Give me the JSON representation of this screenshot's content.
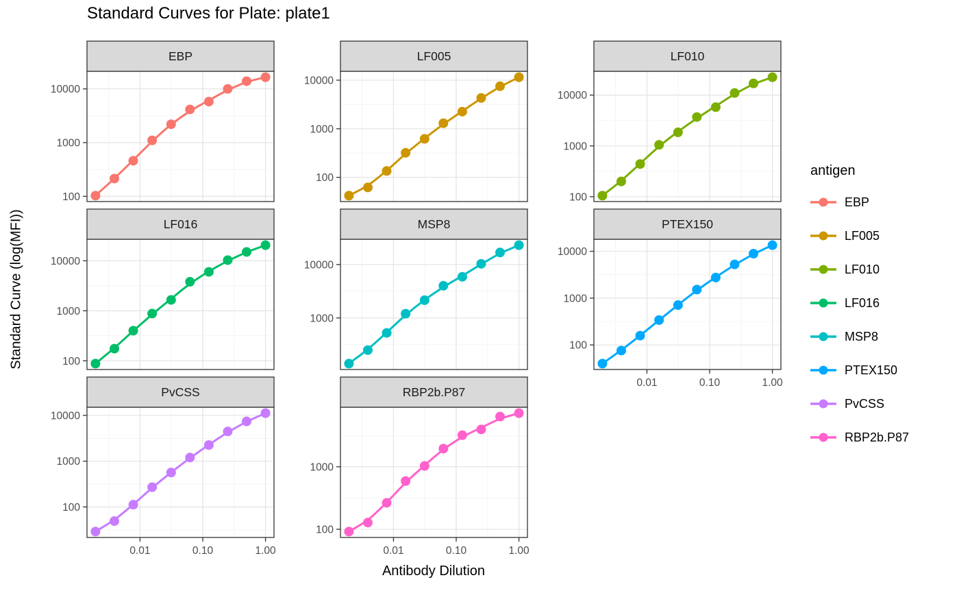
{
  "title": "Standard Curves for Plate: plate1",
  "axes": {
    "x_label": "Antibody Dilution",
    "y_label": "Standard Curve (log(MFI))",
    "x_tick_labels": [
      "0.01",
      "0.10",
      "1.00"
    ],
    "y_tick_labels": [
      "100",
      "1000",
      "10000"
    ]
  },
  "legend": {
    "title": "antigen",
    "position": "right",
    "items": [
      {
        "label": "EBP",
        "color": "#F8766D"
      },
      {
        "label": "LF005",
        "color": "#CD9600"
      },
      {
        "label": "LF010",
        "color": "#7CAE00"
      },
      {
        "label": "LF016",
        "color": "#00BE67"
      },
      {
        "label": "MSP8",
        "color": "#00BFC4"
      },
      {
        "label": "PTEX150",
        "color": "#00A9FF"
      },
      {
        "label": "PvCSS",
        "color": "#C77CFF"
      },
      {
        "label": "RBP2b.P87",
        "color": "#FF61CC"
      }
    ]
  },
  "chart_data": {
    "type": "scatter",
    "title": "Standard Curves for Plate: plate1",
    "xlabel": "Antibody Dilution",
    "ylabel": "Standard Curve (log(MFI))",
    "x_scale": "log10",
    "y_scale": "log10",
    "grid": true,
    "facet_layout": "3-column wrap, free y scales",
    "x": [
      0.00195,
      0.0039,
      0.0078,
      0.0156,
      0.0313,
      0.0625,
      0.125,
      0.25,
      0.5,
      1.0
    ],
    "x_ticks": {
      "values": [
        0.01,
        0.1,
        1.0
      ],
      "labels": [
        "0.01",
        "0.10",
        "1.00"
      ]
    },
    "y_ticks": {
      "values": [
        100,
        1000,
        10000
      ],
      "labels": [
        "100",
        "1000",
        "10000"
      ]
    },
    "facets": [
      {
        "antigen": "EBP",
        "color": "#F8766D",
        "mfi": [
          103,
          214,
          460,
          1100,
          2200,
          4150,
          5800,
          10000,
          13900,
          16500
        ]
      },
      {
        "antigen": "LF005",
        "color": "#CD9600",
        "mfi": [
          42,
          62,
          135,
          320,
          620,
          1300,
          2250,
          4300,
          7500,
          11500
        ]
      },
      {
        "antigen": "LF010",
        "color": "#7CAE00",
        "mfi": [
          105,
          200,
          440,
          1050,
          1850,
          3700,
          5800,
          11000,
          17000,
          22500
        ]
      },
      {
        "antigen": "LF016",
        "color": "#00BE67",
        "mfi": [
          88,
          175,
          400,
          880,
          1650,
          3800,
          6000,
          10300,
          15000,
          20500
        ]
      },
      {
        "antigen": "MSP8",
        "color": "#00BFC4",
        "mfi": [
          140,
          250,
          525,
          1200,
          2150,
          4000,
          5900,
          10300,
          16800,
          23000
        ]
      },
      {
        "antigen": "PTEX150",
        "color": "#00A9FF",
        "mfi": [
          40,
          76,
          158,
          340,
          710,
          1520,
          2750,
          5250,
          8900,
          13500
        ]
      },
      {
        "antigen": "PvCSS",
        "color": "#C77CFF",
        "mfi": [
          29,
          49,
          112,
          270,
          565,
          1200,
          2250,
          4450,
          7400,
          11200
        ]
      },
      {
        "antigen": "RBP2b.P87",
        "color": "#FF61CC",
        "mfi": [
          92,
          128,
          265,
          590,
          1030,
          1950,
          3200,
          3950,
          6350,
          7200
        ]
      }
    ]
  }
}
